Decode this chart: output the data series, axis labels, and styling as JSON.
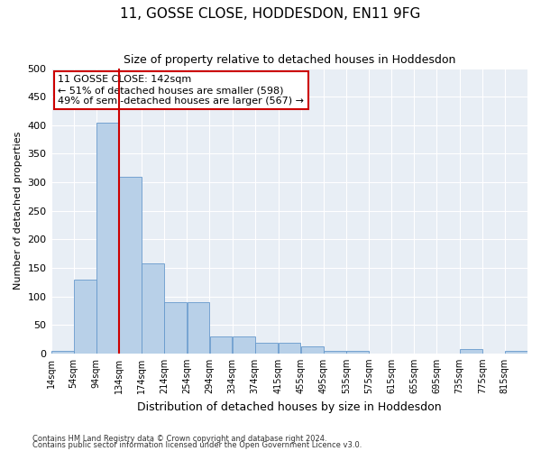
{
  "title": "11, GOSSE CLOSE, HODDESDON, EN11 9FG",
  "subtitle": "Size of property relative to detached houses in Hoddesdon",
  "xlabel": "Distribution of detached houses by size in Hoddesdon",
  "ylabel": "Number of detached properties",
  "bar_color": "#b8d0e8",
  "bar_edgecolor": "#6699cc",
  "bg_color": "#e8eef5",
  "grid_color": "#ffffff",
  "annotation_box_text": "11 GOSSE CLOSE: 142sqm\n← 51% of detached houses are smaller (598)\n49% of semi-detached houses are larger (567) →",
  "annotation_box_color": "#cc0000",
  "marker_line_color": "#cc0000",
  "footer1": "Contains HM Land Registry data © Crown copyright and database right 2024.",
  "footer2": "Contains public sector information licensed under the Open Government Licence v3.0.",
  "bin_edges": [
    14,
    54,
    94,
    134,
    174,
    214,
    254,
    294,
    334,
    374,
    415,
    455,
    495,
    535,
    575,
    615,
    655,
    695,
    735,
    775,
    815
  ],
  "bin_labels": [
    "14sqm",
    "54sqm",
    "94sqm",
    "134sqm",
    "174sqm",
    "214sqm",
    "254sqm",
    "294sqm",
    "334sqm",
    "374sqm",
    "415sqm",
    "455sqm",
    "495sqm",
    "535sqm",
    "575sqm",
    "615sqm",
    "655sqm",
    "695sqm",
    "735sqm",
    "775sqm",
    "815sqm"
  ],
  "bar_heights": [
    5,
    130,
    405,
    310,
    158,
    90,
    90,
    30,
    30,
    18,
    18,
    12,
    5,
    5,
    0,
    0,
    0,
    0,
    8,
    0,
    5
  ],
  "marker_bin_index": 3,
  "ylim": [
    0,
    500
  ],
  "yticks": [
    0,
    50,
    100,
    150,
    200,
    250,
    300,
    350,
    400,
    450,
    500
  ]
}
